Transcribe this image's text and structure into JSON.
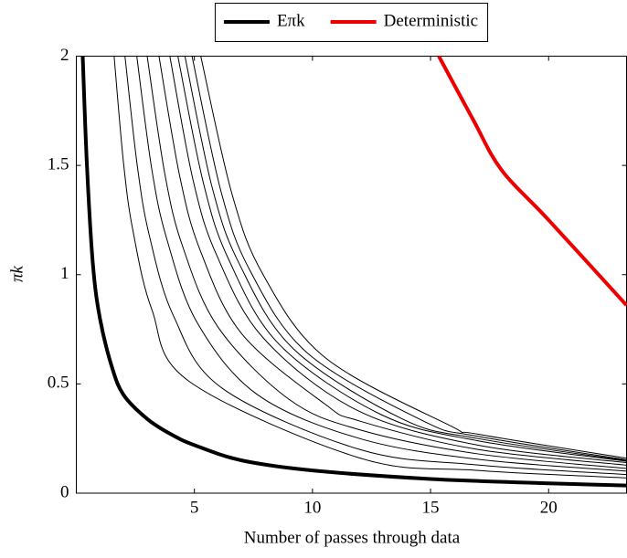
{
  "chart_data": {
    "type": "line",
    "xlabel": "Number of passes through data",
    "ylabel": "πk",
    "xlim": [
      0,
      23.3
    ],
    "ylim": [
      0,
      2
    ],
    "xticks": [
      5,
      10,
      15,
      20
    ],
    "yticks": [
      0,
      0.5,
      1,
      1.5,
      2
    ],
    "grid": false,
    "legend": "top",
    "series": [
      {
        "name": "Eπk",
        "color": "#000000",
        "width": 4,
        "x": [
          0.27,
          0.45,
          0.7,
          1,
          1.5,
          2,
          3,
          4,
          5,
          7,
          10,
          15,
          20,
          23.3
        ],
        "values": [
          2,
          1.5,
          1.05,
          0.8,
          0.58,
          0.45,
          0.34,
          0.27,
          0.22,
          0.15,
          0.104,
          0.065,
          0.045,
          0.035
        ]
      },
      {
        "name": "Deterministic",
        "color": "#ee0000",
        "width": 4,
        "x": [
          15.35,
          16.8,
          18,
          20,
          23.3
        ],
        "values": [
          2,
          1.71,
          1.48,
          1.25,
          0.86
        ]
      },
      {
        "color": "#000000",
        "width": 1,
        "x": [
          1.6,
          2,
          2.4,
          3.2,
          4.8,
          12,
          17,
          23.3
        ],
        "values": [
          2,
          1.51,
          1.2,
          0.84,
          0.51,
          0.161,
          0.104,
          0.07
        ]
      },
      {
        "color": "#000000",
        "width": 1,
        "x": [
          2.06,
          2.58,
          3.09,
          4.12,
          6.18,
          12,
          17,
          23.3
        ],
        "values": [
          2,
          1.5,
          1.18,
          0.81,
          0.48,
          0.2,
          0.129,
          0.085
        ]
      },
      {
        "color": "#000000",
        "width": 1,
        "x": [
          2.56,
          3.2,
          3.84,
          5.12,
          7.68,
          12,
          17,
          23.3
        ],
        "values": [
          2,
          1.48,
          1.16,
          0.78,
          0.45,
          0.25,
          0.155,
          0.101
        ]
      },
      {
        "color": "#000000",
        "width": 1,
        "x": [
          3,
          3.75,
          4.5,
          6,
          9,
          12,
          17,
          23.3
        ],
        "values": [
          2,
          1.46,
          1.13,
          0.76,
          0.43,
          0.29,
          0.18,
          0.113
        ]
      },
      {
        "color": "#000000",
        "width": 1,
        "x": [
          3.5,
          4.38,
          5.25,
          7,
          10.5,
          12,
          17,
          23.3
        ],
        "values": [
          2,
          1.45,
          1.11,
          0.73,
          0.41,
          0.33,
          0.2,
          0.128
        ]
      },
      {
        "color": "#000000",
        "width": 1,
        "x": [
          3.96,
          4.95,
          5.94,
          7.92,
          11.88,
          17,
          23.3
        ],
        "values": [
          2,
          1.43,
          1.09,
          0.71,
          0.38,
          0.22,
          0.14
        ]
      },
      {
        "color": "#000000",
        "width": 1,
        "x": [
          4.3,
          5.38,
          6.45,
          8.6,
          12.9,
          17,
          23.3
        ],
        "values": [
          2,
          1.42,
          1.07,
          0.68,
          0.36,
          0.24,
          0.146
        ]
      },
      {
        "color": "#000000",
        "width": 1,
        "x": [
          4.6,
          5.75,
          6.9,
          9.2,
          13.8,
          17,
          23.3
        ],
        "values": [
          2,
          1.4,
          1.05,
          0.66,
          0.34,
          0.25,
          0.149
        ]
      },
      {
        "color": "#000000",
        "width": 1,
        "x": [
          4.9,
          6.13,
          7.35,
          9.8,
          14.7,
          17,
          23.3
        ],
        "values": [
          2,
          1.38,
          1.02,
          0.64,
          0.33,
          0.26,
          0.153
        ]
      },
      {
        "color": "#000000",
        "width": 1,
        "x": [
          5.27,
          6.59,
          7.91,
          10.54,
          15.81,
          17,
          23.3
        ],
        "values": [
          2,
          1.37,
          1,
          0.62,
          0.31,
          0.27,
          0.16
        ]
      }
    ]
  }
}
